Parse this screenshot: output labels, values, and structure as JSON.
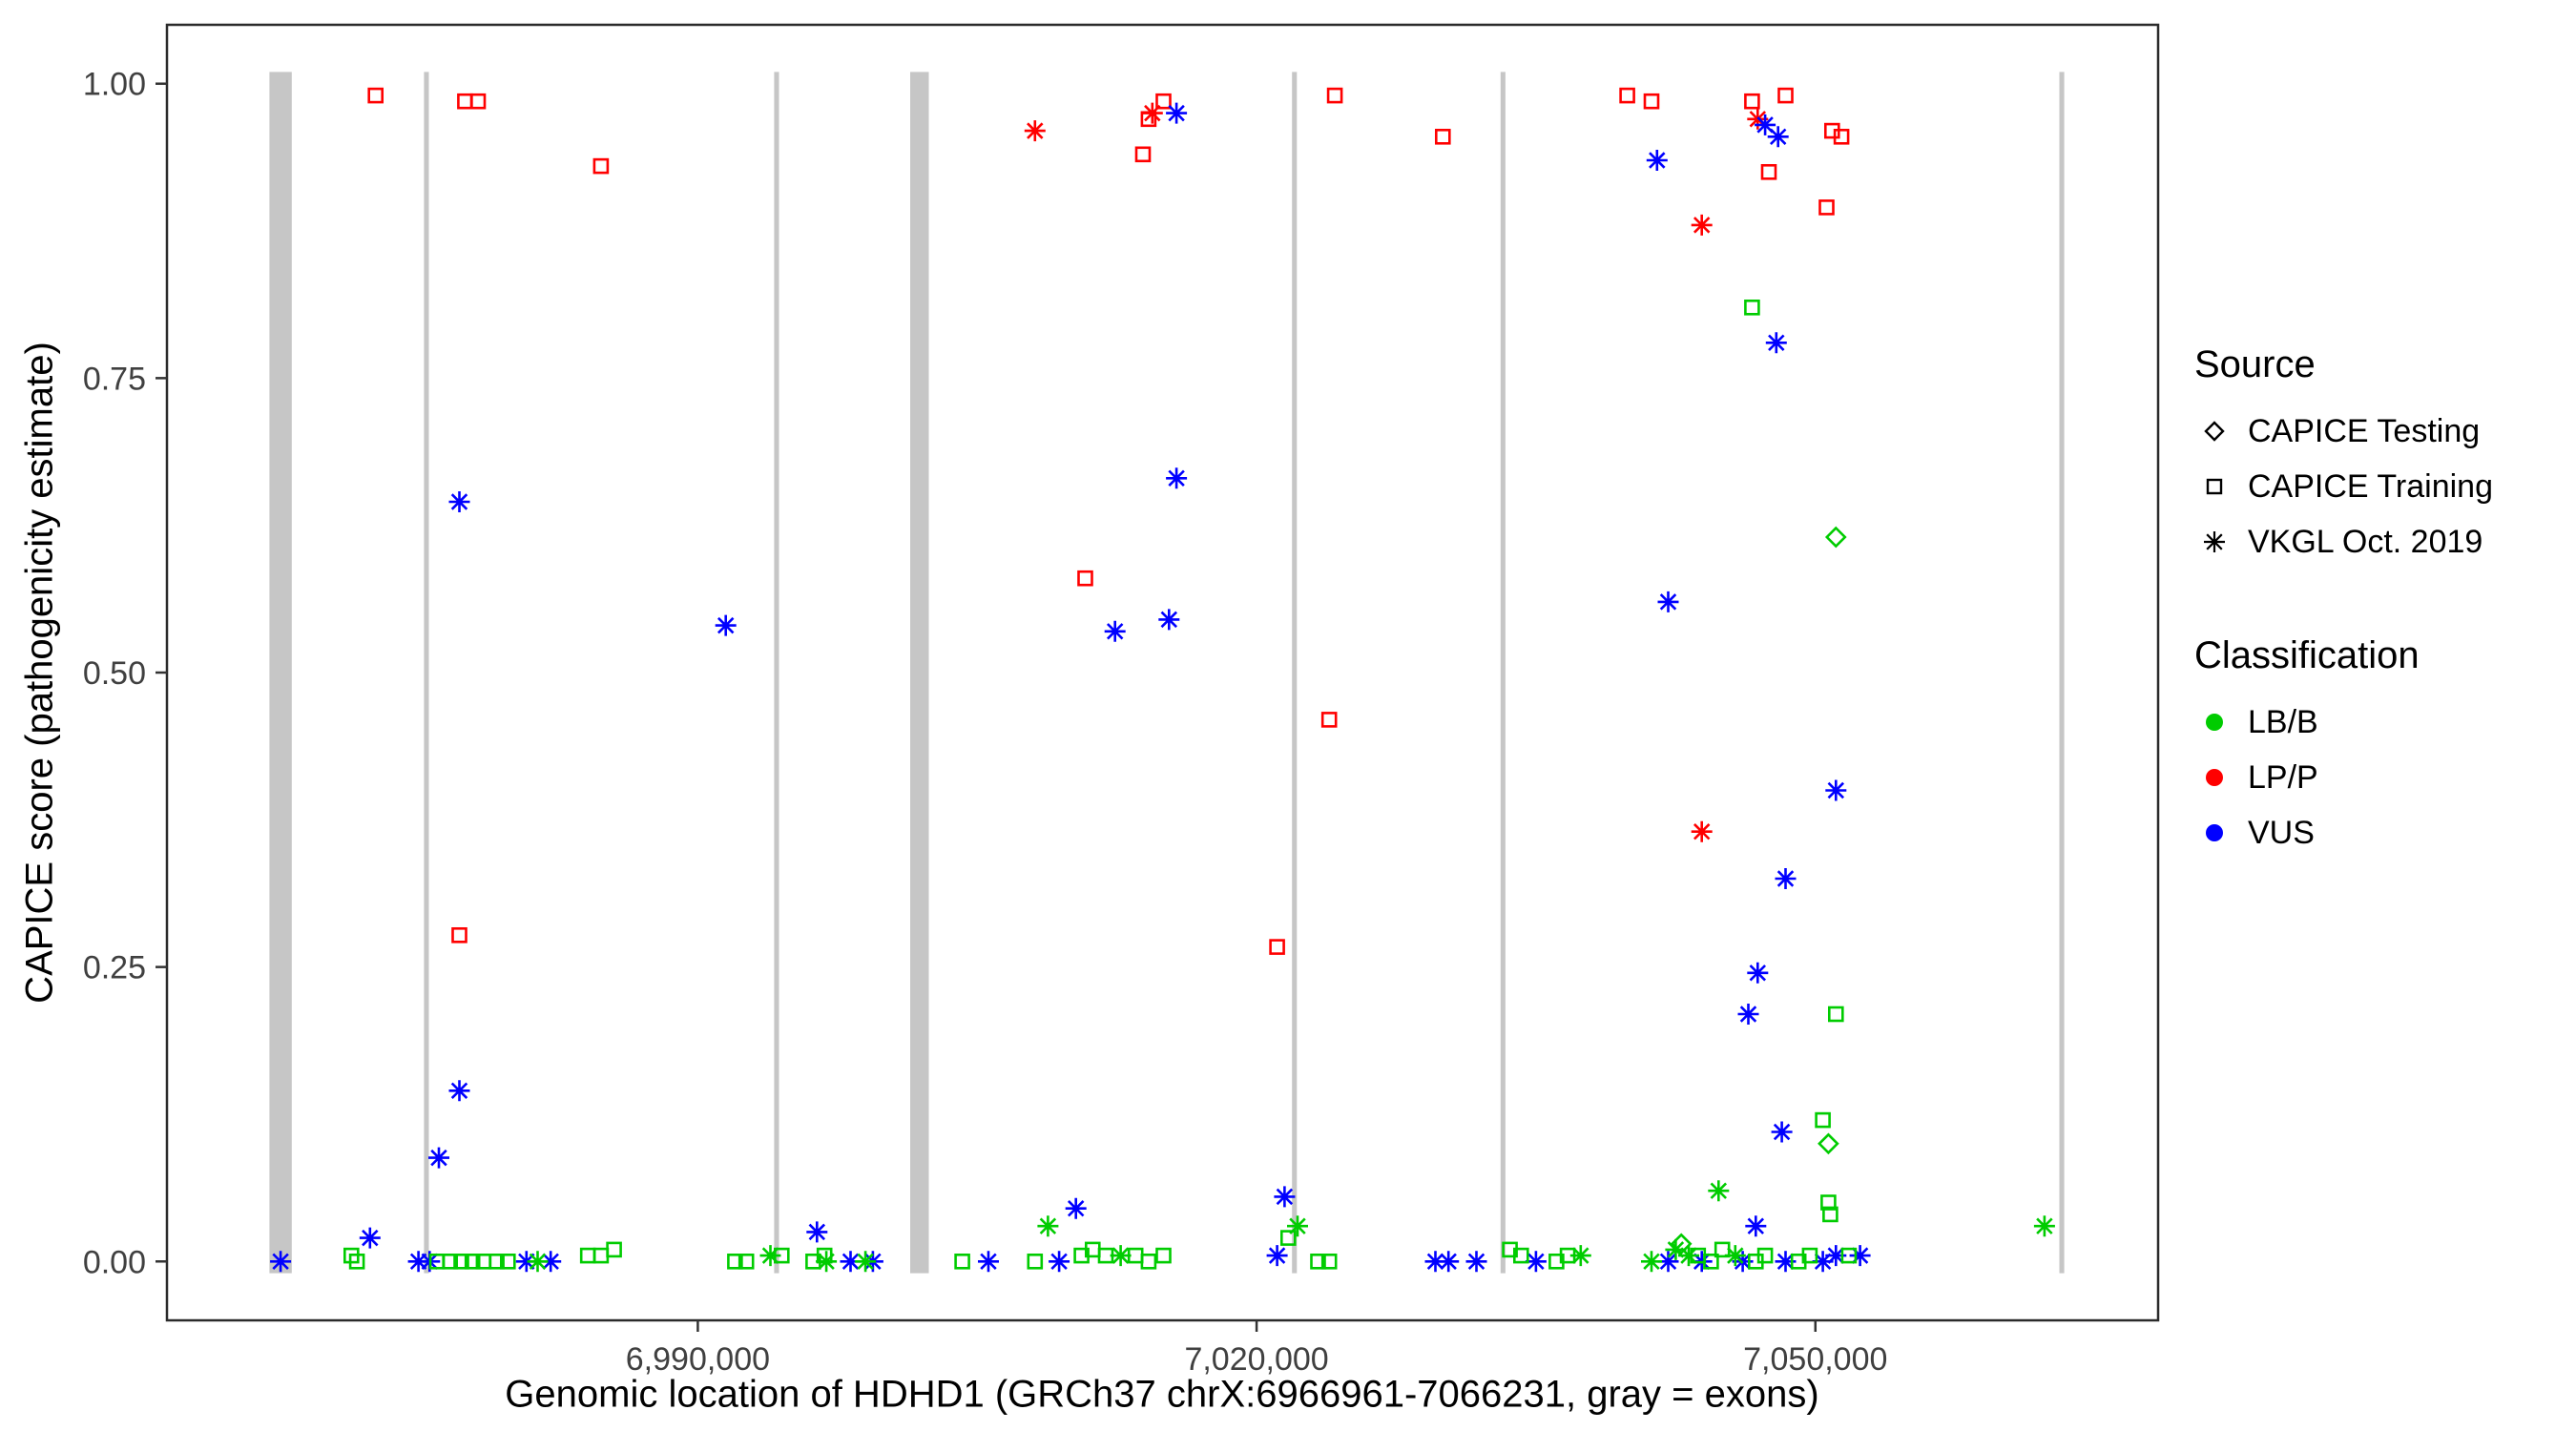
{
  "chart_data": {
    "type": "scatter",
    "title": "",
    "xlabel": "Genomic location of HDHD1 (GRCh37 chrX:6966961-7066231, gray = exons)",
    "ylabel": "CAPICE score (pathogenicity estimate)",
    "xlim": [
      6961500,
      7068400
    ],
    "ylim": [
      -0.05,
      1.05
    ],
    "grid": false,
    "x_ticks": [
      {
        "value": 6990000,
        "label": "6,990,000"
      },
      {
        "value": 7020000,
        "label": "7,020,000"
      },
      {
        "value": 7050000,
        "label": "7,050,000"
      }
    ],
    "y_ticks": [
      {
        "value": 0.0,
        "label": "0.00"
      },
      {
        "value": 0.25,
        "label": "0.25"
      },
      {
        "value": 0.5,
        "label": "0.50"
      },
      {
        "value": 0.75,
        "label": "0.75"
      },
      {
        "value": 1.0,
        "label": "1.00"
      }
    ],
    "exon_color": "#c6c6c6",
    "exons": [
      {
        "start": 6967000,
        "end": 6968200
      },
      {
        "start": 6975300,
        "end": 6975560
      },
      {
        "start": 6994100,
        "end": 6994360
      },
      {
        "start": 7001400,
        "end": 7002400
      },
      {
        "start": 7021900,
        "end": 7022160
      },
      {
        "start": 7033100,
        "end": 7033360
      },
      {
        "start": 7063100,
        "end": 7063360
      }
    ],
    "class_colors": {
      "LB/B": "#00CC00",
      "LP/P": "#FF0000",
      "VUS": "#0000FF"
    },
    "legend": {
      "source": {
        "title": "Source",
        "items": [
          {
            "label": "CAPICE Testing",
            "shape": "diamond"
          },
          {
            "label": "CAPICE Training",
            "shape": "square"
          },
          {
            "label": "VKGL Oct. 2019",
            "shape": "asterisk"
          }
        ]
      },
      "classification": {
        "title": "Classification",
        "items": [
          {
            "label": "LB/B",
            "color": "#00CC00"
          },
          {
            "label": "LP/P",
            "color": "#FF0000"
          },
          {
            "label": "VUS",
            "color": "#0000FF"
          }
        ]
      }
    },
    "points": [
      {
        "x": 6972700,
        "y": 0.99,
        "source": "training",
        "class": "LP/P"
      },
      {
        "x": 6977500,
        "y": 0.985,
        "source": "training",
        "class": "LP/P"
      },
      {
        "x": 6978200,
        "y": 0.985,
        "source": "training",
        "class": "LP/P"
      },
      {
        "x": 6984800,
        "y": 0.93,
        "source": "training",
        "class": "LP/P"
      },
      {
        "x": 7013900,
        "y": 0.94,
        "source": "training",
        "class": "LP/P"
      },
      {
        "x": 7014200,
        "y": 0.97,
        "source": "training",
        "class": "LP/P"
      },
      {
        "x": 7015000,
        "y": 0.985,
        "source": "training",
        "class": "LP/P"
      },
      {
        "x": 7024200,
        "y": 0.99,
        "source": "training",
        "class": "LP/P"
      },
      {
        "x": 7030000,
        "y": 0.955,
        "source": "training",
        "class": "LP/P"
      },
      {
        "x": 7039900,
        "y": 0.99,
        "source": "training",
        "class": "LP/P"
      },
      {
        "x": 7041200,
        "y": 0.985,
        "source": "training",
        "class": "LP/P"
      },
      {
        "x": 7046600,
        "y": 0.985,
        "source": "training",
        "class": "LP/P"
      },
      {
        "x": 7048400,
        "y": 0.99,
        "source": "training",
        "class": "LP/P"
      },
      {
        "x": 7047500,
        "y": 0.925,
        "source": "training",
        "class": "LP/P"
      },
      {
        "x": 7050900,
        "y": 0.96,
        "source": "training",
        "class": "LP/P"
      },
      {
        "x": 7051400,
        "y": 0.955,
        "source": "training",
        "class": "LP/P"
      },
      {
        "x": 7050600,
        "y": 0.895,
        "source": "training",
        "class": "LP/P"
      },
      {
        "x": 6977200,
        "y": 0.277,
        "source": "training",
        "class": "LP/P"
      },
      {
        "x": 7010800,
        "y": 0.58,
        "source": "training",
        "class": "LP/P"
      },
      {
        "x": 7023900,
        "y": 0.46,
        "source": "training",
        "class": "LP/P"
      },
      {
        "x": 7021100,
        "y": 0.267,
        "source": "training",
        "class": "LP/P"
      },
      {
        "x": 7008100,
        "y": 0.96,
        "source": "vkgl",
        "class": "LP/P"
      },
      {
        "x": 7014400,
        "y": 0.975,
        "source": "vkgl",
        "class": "LP/P"
      },
      {
        "x": 7043900,
        "y": 0.88,
        "source": "vkgl",
        "class": "LP/P"
      },
      {
        "x": 7046900,
        "y": 0.97,
        "source": "vkgl",
        "class": "LP/P"
      },
      {
        "x": 7043900,
        "y": 0.365,
        "source": "vkgl",
        "class": "LP/P"
      },
      {
        "x": 7015700,
        "y": 0.975,
        "source": "vkgl",
        "class": "VUS"
      },
      {
        "x": 7041500,
        "y": 0.935,
        "source": "vkgl",
        "class": "VUS"
      },
      {
        "x": 7047300,
        "y": 0.965,
        "source": "vkgl",
        "class": "VUS"
      },
      {
        "x": 7048000,
        "y": 0.955,
        "source": "vkgl",
        "class": "VUS"
      },
      {
        "x": 7047900,
        "y": 0.78,
        "source": "vkgl",
        "class": "VUS"
      },
      {
        "x": 6977200,
        "y": 0.645,
        "source": "vkgl",
        "class": "VUS"
      },
      {
        "x": 6991500,
        "y": 0.54,
        "source": "vkgl",
        "class": "VUS"
      },
      {
        "x": 7012400,
        "y": 0.535,
        "source": "vkgl",
        "class": "VUS"
      },
      {
        "x": 7015300,
        "y": 0.545,
        "source": "vkgl",
        "class": "VUS"
      },
      {
        "x": 7015700,
        "y": 0.665,
        "source": "vkgl",
        "class": "VUS"
      },
      {
        "x": 7042100,
        "y": 0.56,
        "source": "vkgl",
        "class": "VUS"
      },
      {
        "x": 7051100,
        "y": 0.4,
        "source": "vkgl",
        "class": "VUS"
      },
      {
        "x": 7048400,
        "y": 0.325,
        "source": "vkgl",
        "class": "VUS"
      },
      {
        "x": 7046900,
        "y": 0.245,
        "source": "vkgl",
        "class": "VUS"
      },
      {
        "x": 7046400,
        "y": 0.21,
        "source": "vkgl",
        "class": "VUS"
      },
      {
        "x": 7048200,
        "y": 0.11,
        "source": "vkgl",
        "class": "VUS"
      },
      {
        "x": 6977200,
        "y": 0.145,
        "source": "vkgl",
        "class": "VUS"
      },
      {
        "x": 6976100,
        "y": 0.088,
        "source": "vkgl",
        "class": "VUS"
      },
      {
        "x": 7046800,
        "y": 0.03,
        "source": "vkgl",
        "class": "VUS"
      },
      {
        "x": 7021500,
        "y": 0.055,
        "source": "vkgl",
        "class": "VUS"
      },
      {
        "x": 7010300,
        "y": 0.045,
        "source": "vkgl",
        "class": "VUS"
      },
      {
        "x": 6972400,
        "y": 0.02,
        "source": "vkgl",
        "class": "VUS"
      },
      {
        "x": 6996400,
        "y": 0.025,
        "source": "vkgl",
        "class": "VUS"
      },
      {
        "x": 7051100,
        "y": 0.615,
        "source": "testing",
        "class": "LB/B"
      },
      {
        "x": 7050700,
        "y": 0.1,
        "source": "testing",
        "class": "LB/B"
      },
      {
        "x": 7042800,
        "y": 0.015,
        "source": "testing",
        "class": "LB/B"
      },
      {
        "x": 7046600,
        "y": 0.81,
        "source": "training",
        "class": "LB/B"
      },
      {
        "x": 7051100,
        "y": 0.21,
        "source": "training",
        "class": "LB/B"
      },
      {
        "x": 7050400,
        "y": 0.12,
        "source": "training",
        "class": "LB/B"
      },
      {
        "x": 7050700,
        "y": 0.05,
        "source": "training",
        "class": "LB/B"
      },
      {
        "x": 7050800,
        "y": 0.04,
        "source": "training",
        "class": "LB/B"
      },
      {
        "x": 7044800,
        "y": 0.06,
        "source": "vkgl",
        "class": "LB/B"
      },
      {
        "x": 7008800,
        "y": 0.03,
        "source": "vkgl",
        "class": "LB/B"
      },
      {
        "x": 7062300,
        "y": 0.03,
        "source": "vkgl",
        "class": "LB/B"
      },
      {
        "x": 7022200,
        "y": 0.03,
        "source": "vkgl",
        "class": "LB/B"
      },
      {
        "x": 7021700,
        "y": 0.02,
        "source": "training",
        "class": "LB/B"
      },
      {
        "x": 6967600,
        "y": 0.0,
        "source": "vkgl",
        "class": "VUS"
      },
      {
        "x": 6975000,
        "y": 0.0,
        "source": "vkgl",
        "class": "VUS"
      },
      {
        "x": 6975600,
        "y": 0.0,
        "source": "vkgl",
        "class": "VUS"
      },
      {
        "x": 6980800,
        "y": 0.0,
        "source": "vkgl",
        "class": "VUS"
      },
      {
        "x": 6982100,
        "y": 0.0,
        "source": "vkgl",
        "class": "VUS"
      },
      {
        "x": 6998200,
        "y": 0.0,
        "source": "vkgl",
        "class": "VUS"
      },
      {
        "x": 6999400,
        "y": 0.0,
        "source": "vkgl",
        "class": "VUS"
      },
      {
        "x": 7005600,
        "y": 0.0,
        "source": "vkgl",
        "class": "VUS"
      },
      {
        "x": 7009400,
        "y": 0.0,
        "source": "vkgl",
        "class": "VUS"
      },
      {
        "x": 7021100,
        "y": 0.005,
        "source": "vkgl",
        "class": "VUS"
      },
      {
        "x": 7029600,
        "y": 0.0,
        "source": "vkgl",
        "class": "VUS"
      },
      {
        "x": 7030300,
        "y": 0.0,
        "source": "vkgl",
        "class": "VUS"
      },
      {
        "x": 7031800,
        "y": 0.0,
        "source": "vkgl",
        "class": "VUS"
      },
      {
        "x": 7035000,
        "y": 0.0,
        "source": "vkgl",
        "class": "VUS"
      },
      {
        "x": 7042100,
        "y": 0.0,
        "source": "vkgl",
        "class": "VUS"
      },
      {
        "x": 7043900,
        "y": 0.0,
        "source": "vkgl",
        "class": "VUS"
      },
      {
        "x": 7046100,
        "y": 0.0,
        "source": "vkgl",
        "class": "VUS"
      },
      {
        "x": 7048400,
        "y": 0.0,
        "source": "vkgl",
        "class": "VUS"
      },
      {
        "x": 7050400,
        "y": 0.0,
        "source": "vkgl",
        "class": "VUS"
      },
      {
        "x": 7051100,
        "y": 0.005,
        "source": "vkgl",
        "class": "VUS"
      },
      {
        "x": 7052400,
        "y": 0.005,
        "source": "vkgl",
        "class": "VUS"
      },
      {
        "x": 6971400,
        "y": 0.005,
        "source": "training",
        "class": "LB/B"
      },
      {
        "x": 6971700,
        "y": 0.0,
        "source": "training",
        "class": "LB/B"
      },
      {
        "x": 6976000,
        "y": 0.0,
        "source": "training",
        "class": "LB/B"
      },
      {
        "x": 6976700,
        "y": 0.0,
        "source": "training",
        "class": "LB/B"
      },
      {
        "x": 6977300,
        "y": 0.0,
        "source": "training",
        "class": "LB/B"
      },
      {
        "x": 6977900,
        "y": 0.0,
        "source": "training",
        "class": "LB/B"
      },
      {
        "x": 6978500,
        "y": 0.0,
        "source": "training",
        "class": "LB/B"
      },
      {
        "x": 6979200,
        "y": 0.0,
        "source": "training",
        "class": "LB/B"
      },
      {
        "x": 6979800,
        "y": 0.0,
        "source": "training",
        "class": "LB/B"
      },
      {
        "x": 6984100,
        "y": 0.005,
        "source": "training",
        "class": "LB/B"
      },
      {
        "x": 6984800,
        "y": 0.005,
        "source": "training",
        "class": "LB/B"
      },
      {
        "x": 6985500,
        "y": 0.01,
        "source": "training",
        "class": "LB/B"
      },
      {
        "x": 6992000,
        "y": 0.0,
        "source": "training",
        "class": "LB/B"
      },
      {
        "x": 6992600,
        "y": 0.0,
        "source": "training",
        "class": "LB/B"
      },
      {
        "x": 6994500,
        "y": 0.005,
        "source": "training",
        "class": "LB/B"
      },
      {
        "x": 6996200,
        "y": 0.0,
        "source": "training",
        "class": "LB/B"
      },
      {
        "x": 6996800,
        "y": 0.005,
        "source": "training",
        "class": "LB/B"
      },
      {
        "x": 7004200,
        "y": 0.0,
        "source": "training",
        "class": "LB/B"
      },
      {
        "x": 7008100,
        "y": 0.0,
        "source": "training",
        "class": "LB/B"
      },
      {
        "x": 7010600,
        "y": 0.005,
        "source": "training",
        "class": "LB/B"
      },
      {
        "x": 7011200,
        "y": 0.01,
        "source": "training",
        "class": "LB/B"
      },
      {
        "x": 7011900,
        "y": 0.005,
        "source": "training",
        "class": "LB/B"
      },
      {
        "x": 7013500,
        "y": 0.005,
        "source": "training",
        "class": "LB/B"
      },
      {
        "x": 7014200,
        "y": 0.0,
        "source": "training",
        "class": "LB/B"
      },
      {
        "x": 7015000,
        "y": 0.005,
        "source": "training",
        "class": "LB/B"
      },
      {
        "x": 7023300,
        "y": 0.0,
        "source": "training",
        "class": "LB/B"
      },
      {
        "x": 7023900,
        "y": 0.0,
        "source": "training",
        "class": "LB/B"
      },
      {
        "x": 7033600,
        "y": 0.01,
        "source": "training",
        "class": "LB/B"
      },
      {
        "x": 7034200,
        "y": 0.005,
        "source": "training",
        "class": "LB/B"
      },
      {
        "x": 7036100,
        "y": 0.0,
        "source": "training",
        "class": "LB/B"
      },
      {
        "x": 7036700,
        "y": 0.005,
        "source": "training",
        "class": "LB/B"
      },
      {
        "x": 7043700,
        "y": 0.005,
        "source": "training",
        "class": "LB/B"
      },
      {
        "x": 7044400,
        "y": 0.0,
        "source": "training",
        "class": "LB/B"
      },
      {
        "x": 7045000,
        "y": 0.01,
        "source": "training",
        "class": "LB/B"
      },
      {
        "x": 7046800,
        "y": 0.0,
        "source": "training",
        "class": "LB/B"
      },
      {
        "x": 7047300,
        "y": 0.005,
        "source": "training",
        "class": "LB/B"
      },
      {
        "x": 7049100,
        "y": 0.0,
        "source": "training",
        "class": "LB/B"
      },
      {
        "x": 7049700,
        "y": 0.005,
        "source": "training",
        "class": "LB/B"
      },
      {
        "x": 7051800,
        "y": 0.005,
        "source": "training",
        "class": "LB/B"
      },
      {
        "x": 6981400,
        "y": 0.0,
        "source": "vkgl",
        "class": "LB/B"
      },
      {
        "x": 6993900,
        "y": 0.005,
        "source": "vkgl",
        "class": "LB/B"
      },
      {
        "x": 6996900,
        "y": 0.0,
        "source": "vkgl",
        "class": "LB/B"
      },
      {
        "x": 6999000,
        "y": 0.0,
        "source": "vkgl",
        "class": "LB/B"
      },
      {
        "x": 7012700,
        "y": 0.005,
        "source": "vkgl",
        "class": "LB/B"
      },
      {
        "x": 7037400,
        "y": 0.005,
        "source": "vkgl",
        "class": "LB/B"
      },
      {
        "x": 7041200,
        "y": 0.0,
        "source": "vkgl",
        "class": "LB/B"
      },
      {
        "x": 7043200,
        "y": 0.005,
        "source": "vkgl",
        "class": "LB/B"
      },
      {
        "x": 7045700,
        "y": 0.005,
        "source": "vkgl",
        "class": "LB/B"
      },
      {
        "x": 7042500,
        "y": 0.01,
        "source": "vkgl",
        "class": "LB/B"
      }
    ]
  }
}
